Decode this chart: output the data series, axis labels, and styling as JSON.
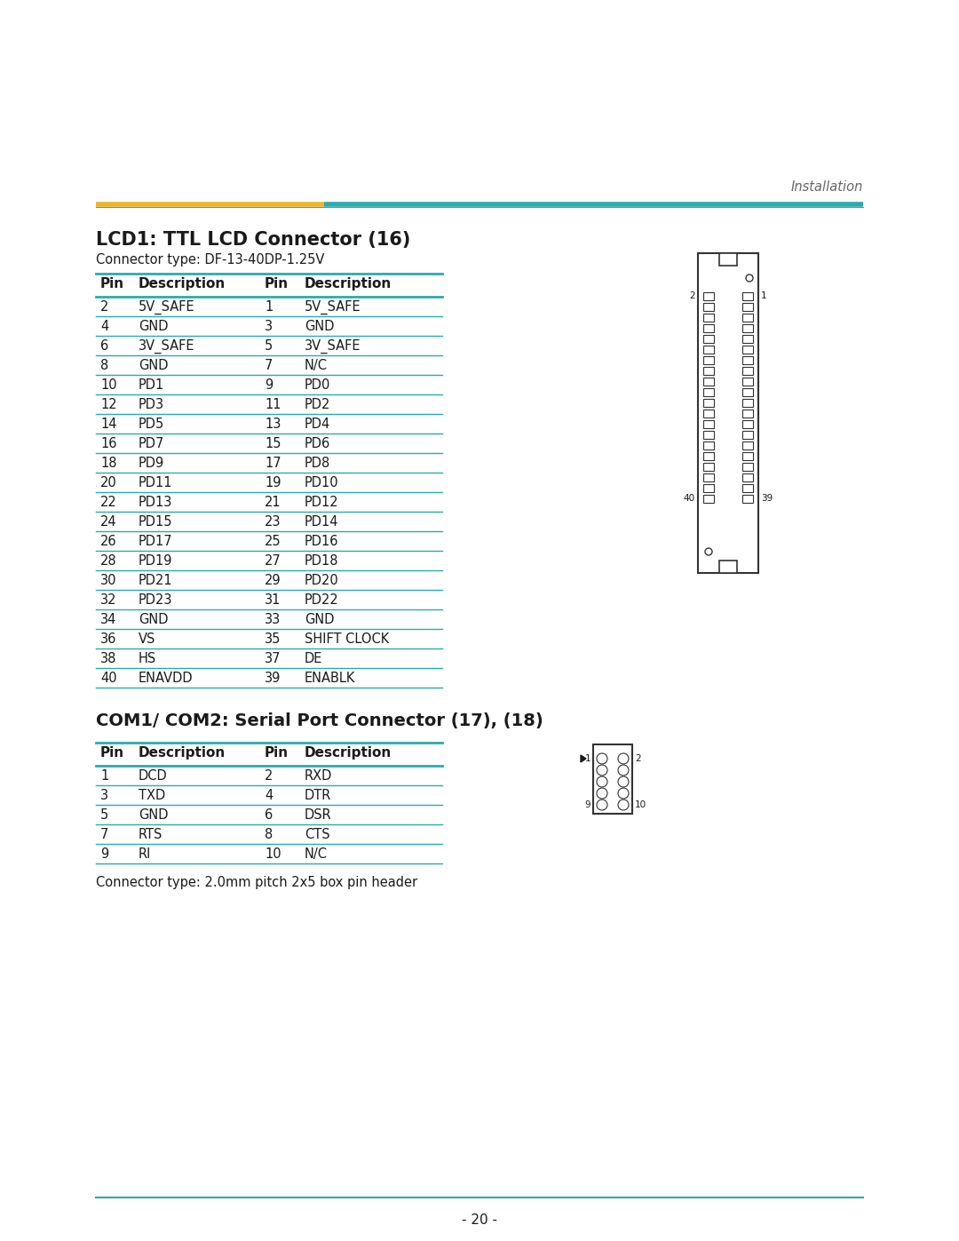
{
  "page_title_right": "Installation",
  "header_line_color1": "#F0B429",
  "header_line_color2": "#2AABAB",
  "section1_title": "LCD1: TTL LCD Connector (16)",
  "section1_subtitle": "Connector type: DF-13-40DP-1.25V",
  "lcd_table_headers": [
    "Pin",
    "Description",
    "Pin",
    "Description"
  ],
  "lcd_table_rows": [
    [
      "2",
      "5V_SAFE",
      "1",
      "5V_SAFE"
    ],
    [
      "4",
      "GND",
      "3",
      "GND"
    ],
    [
      "6",
      "3V_SAFE",
      "5",
      "3V_SAFE"
    ],
    [
      "8",
      "GND",
      "7",
      "N/C"
    ],
    [
      "10",
      "PD1",
      "9",
      "PD0"
    ],
    [
      "12",
      "PD3",
      "11",
      "PD2"
    ],
    [
      "14",
      "PD5",
      "13",
      "PD4"
    ],
    [
      "16",
      "PD7",
      "15",
      "PD6"
    ],
    [
      "18",
      "PD9",
      "17",
      "PD8"
    ],
    [
      "20",
      "PD11",
      "19",
      "PD10"
    ],
    [
      "22",
      "PD13",
      "21",
      "PD12"
    ],
    [
      "24",
      "PD15",
      "23",
      "PD14"
    ],
    [
      "26",
      "PD17",
      "25",
      "PD16"
    ],
    [
      "28",
      "PD19",
      "27",
      "PD18"
    ],
    [
      "30",
      "PD21",
      "29",
      "PD20"
    ],
    [
      "32",
      "PD23",
      "31",
      "PD22"
    ],
    [
      "34",
      "GND",
      "33",
      "GND"
    ],
    [
      "36",
      "VS",
      "35",
      "SHIFT CLOCK"
    ],
    [
      "38",
      "HS",
      "37",
      "DE"
    ],
    [
      "40",
      "ENAVDD",
      "39",
      "ENABLK"
    ]
  ],
  "table_line_color": "#2AABAB",
  "section2_title": "COM1/ COM2: Serial Port Connector (17), (18)",
  "com_table_headers": [
    "Pin",
    "Description",
    "Pin",
    "Description"
  ],
  "com_table_rows": [
    [
      "1",
      "DCD",
      "2",
      "RXD"
    ],
    [
      "3",
      "TXD",
      "4",
      "DTR"
    ],
    [
      "5",
      "GND",
      "6",
      "DSR"
    ],
    [
      "7",
      "RTS",
      "8",
      "CTS"
    ],
    [
      "9",
      "RI",
      "10",
      "N/C"
    ]
  ],
  "section2_footer": "Connector type: 2.0mm pitch 2x5 box pin header",
  "page_number": "- 20 -",
  "bg_color": "#FFFFFF",
  "text_color": "#1a1a1a",
  "header_text_color": "#666666"
}
